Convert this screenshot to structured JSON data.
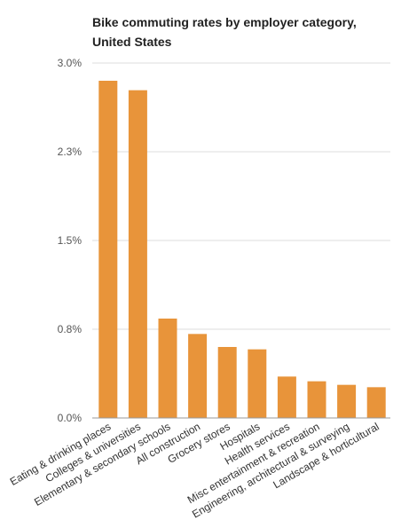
{
  "chart_data": {
    "type": "bar",
    "title": "Bike commuting rates by employer category, United States",
    "xlabel": "",
    "ylabel": "",
    "ylim": [
      0,
      3.0
    ],
    "ytick_values": [
      0,
      0.75,
      1.5,
      2.25,
      3.0
    ],
    "ytick_labels": [
      "0.0%",
      "0.8%",
      "1.5%",
      "2.3%",
      "3.0%"
    ],
    "grid": true,
    "legend": "none",
    "bar_color": "#e8943a",
    "categories": [
      "Eating & drinking places",
      "Colleges & universities",
      "Elementary & secondary schools",
      "All construction",
      "Grocery stores",
      "Hospitals",
      "Health services",
      "Misc entertainment & recreation",
      "Engineering, architectural & surveying",
      "Landscape & horticultural"
    ],
    "values": [
      2.85,
      2.77,
      0.84,
      0.71,
      0.6,
      0.58,
      0.35,
      0.31,
      0.28,
      0.26
    ]
  }
}
